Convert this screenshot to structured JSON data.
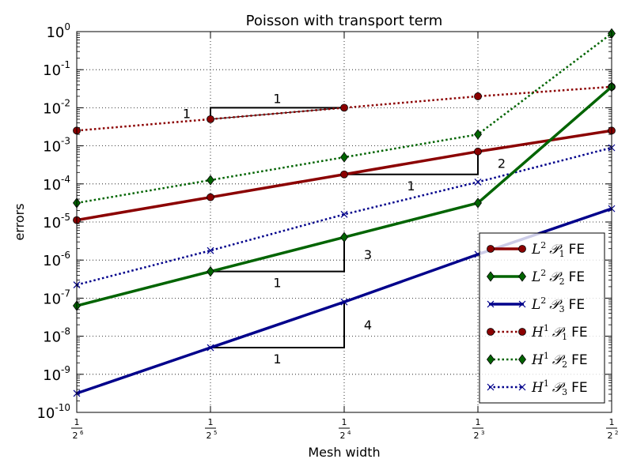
{
  "chart_data": {
    "type": "line",
    "title": "Poisson with transport term",
    "xlabel": "Mesh width",
    "ylabel": "errors",
    "x_scale": "log2",
    "y_scale": "log10",
    "x_exponents": [
      6,
      5,
      4,
      3,
      2
    ],
    "xlim_exponent": [
      6,
      2
    ],
    "ylim_exponent": [
      -10,
      0
    ],
    "y_tick_exponents": [
      "0",
      "-1",
      "-2",
      "-3",
      "-4",
      "-5",
      "-6",
      "-7",
      "-8",
      "-9",
      "-10"
    ],
    "grid": true,
    "legend_position": "lower-right",
    "series": [
      {
        "name": "L2 P1 FE",
        "label_norm": "L",
        "label_sup": "2",
        "label_sub": "1",
        "label_suffix": "FE",
        "color": "#8b0000",
        "style": "solid",
        "marker": "circle",
        "y_exp": [
          -4.95,
          -4.35,
          -3.75,
          -3.15,
          -2.6
        ]
      },
      {
        "name": "L2 P2 FE",
        "label_norm": "L",
        "label_sup": "2",
        "label_sub": "2",
        "label_suffix": "FE",
        "color": "#006400",
        "style": "solid",
        "marker": "diamond",
        "y_exp": [
          -7.2,
          -6.3,
          -5.4,
          -4.5,
          -1.45
        ]
      },
      {
        "name": "L2 P3 FE",
        "label_norm": "L",
        "label_sup": "2",
        "label_sub": "3",
        "label_suffix": "FE",
        "color": "#00008b",
        "style": "solid",
        "marker": "x",
        "y_exp": [
          -9.5,
          -8.3,
          -7.1,
          -5.85,
          -4.65
        ]
      },
      {
        "name": "H1 P1 FE",
        "label_norm": "H",
        "label_sup": "1",
        "label_sub": "1",
        "label_suffix": "FE",
        "color": "#8b0000",
        "style": "dotted",
        "marker": "circle",
        "y_exp": [
          -2.6,
          -2.3,
          -2.0,
          -1.7,
          -1.45
        ]
      },
      {
        "name": "H1 P2 FE",
        "label_norm": "H",
        "label_sup": "1",
        "label_sub": "2",
        "label_suffix": "FE",
        "color": "#006400",
        "style": "dotted",
        "marker": "diamond",
        "y_exp": [
          -4.5,
          -3.9,
          -3.3,
          -2.7,
          -0.05
        ]
      },
      {
        "name": "H1 P3 FE",
        "label_norm": "H",
        "label_sup": "1",
        "label_sub": "3",
        "label_suffix": "FE",
        "color": "#00008b",
        "style": "dotted",
        "marker": "x",
        "y_exp": [
          -6.65,
          -5.75,
          -4.8,
          -3.95,
          -3.05
        ]
      }
    ],
    "slope_triangles": [
      {
        "x_from": 5,
        "x_to": 4,
        "y_low": -2.3,
        "y_high": -2.0,
        "run_label": "1",
        "rise_label": "1",
        "orientation": "upper-left"
      },
      {
        "x_from": 4,
        "x_to": 3,
        "y_low": -3.75,
        "y_high": -3.15,
        "run_label": "1",
        "rise_label": "2",
        "orientation": "lower-right"
      },
      {
        "x_from": 5,
        "x_to": 4,
        "y_low": -6.3,
        "y_high": -5.4,
        "run_label": "1",
        "rise_label": "3",
        "orientation": "lower-right"
      },
      {
        "x_from": 5,
        "x_to": 4,
        "y_low": -8.3,
        "y_high": -7.1,
        "run_label": "1",
        "rise_label": "4",
        "orientation": "lower-right"
      }
    ]
  }
}
